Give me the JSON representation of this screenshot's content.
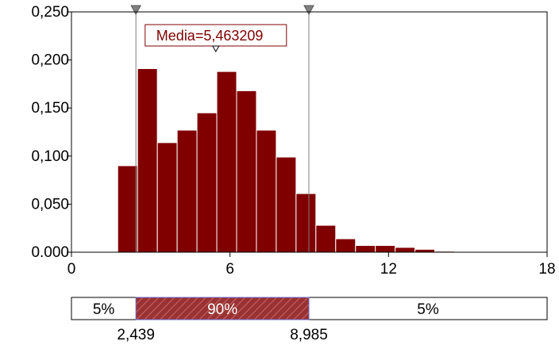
{
  "chart_data": {
    "type": "bar",
    "title": "",
    "xlabel": "",
    "ylabel": "",
    "xlim": [
      0,
      18
    ],
    "ylim": [
      0,
      0.25
    ],
    "x_ticks": [
      0,
      6,
      12,
      18
    ],
    "x_tick_labels": [
      "0",
      "6",
      "12",
      "18"
    ],
    "y_ticks": [
      0,
      0.05,
      0.1,
      0.15,
      0.2,
      0.25
    ],
    "y_tick_labels": [
      "0.000",
      "0,050",
      "0,100",
      "0,150",
      "0,200",
      "0,250"
    ],
    "bin_width": 0.75,
    "bins": [
      {
        "x_start": 1.75,
        "value": 0.09
      },
      {
        "x_start": 2.5,
        "value": 0.191
      },
      {
        "x_start": 3.25,
        "value": 0.114
      },
      {
        "x_start": 4.0,
        "value": 0.127
      },
      {
        "x_start": 4.75,
        "value": 0.145
      },
      {
        "x_start": 5.5,
        "value": 0.188
      },
      {
        "x_start": 6.25,
        "value": 0.168
      },
      {
        "x_start": 7.0,
        "value": 0.127
      },
      {
        "x_start": 7.75,
        "value": 0.099
      },
      {
        "x_start": 8.5,
        "value": 0.061
      },
      {
        "x_start": 9.25,
        "value": 0.028
      },
      {
        "x_start": 10.0,
        "value": 0.014
      },
      {
        "x_start": 10.75,
        "value": 0.007
      },
      {
        "x_start": 11.5,
        "value": 0.007
      },
      {
        "x_start": 12.25,
        "value": 0.005
      },
      {
        "x_start": 13.0,
        "value": 0.003
      },
      {
        "x_start": 13.75,
        "value": 0.001
      }
    ],
    "mean_label": "Media=5,463209",
    "mean_value": 5.463209,
    "lower_marker": 2.439,
    "upper_marker": 8.985,
    "lower_marker_label": "2,439",
    "upper_marker_label": "8,985",
    "band_labels": {
      "left": "5%",
      "middle": "90%",
      "right": "5%"
    },
    "colors": {
      "bar": "#800000",
      "bar_stroke": "#ffffff",
      "marker": "#808080",
      "band_fill": "#993333",
      "band_border": "#6666cc"
    },
    "grid": false
  }
}
